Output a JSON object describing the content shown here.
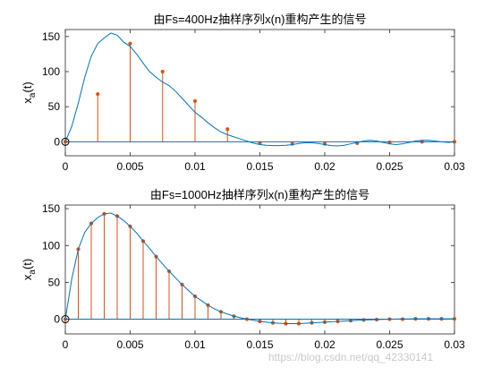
{
  "chart_data": [
    {
      "type": "stem+line",
      "title": "由Fs=400Hz抽样序列x(n)重构产生的信号",
      "xlabel": "",
      "ylabel_main": "x",
      "ylabel_sub": "a",
      "ylabel_suffix": "(t)",
      "xlim": [
        0,
        0.03
      ],
      "ylim": [
        -20,
        160
      ],
      "xticks": [
        0,
        0.005,
        0.01,
        0.015,
        0.02,
        0.025,
        0.03
      ],
      "xtick_labels": [
        "0",
        "0.005",
        "0.01",
        "0.015",
        "0.02",
        "0.025",
        "0.03"
      ],
      "yticks": [
        0,
        50,
        100,
        150
      ],
      "ytick_labels": [
        "0",
        "50",
        "100",
        "150"
      ],
      "grid": false,
      "samples": {
        "x": [
          0,
          0.0025,
          0.005,
          0.0075,
          0.01,
          0.0125,
          0.015,
          0.0175,
          0.02,
          0.0225,
          0.025,
          0.0275,
          0.03
        ],
        "y": [
          0,
          68,
          140,
          100,
          58,
          18,
          -2,
          -3,
          -3,
          -2,
          -1,
          0,
          0
        ]
      },
      "curve": {
        "x": [
          0,
          0.0005,
          0.001,
          0.0015,
          0.002,
          0.0025,
          0.003,
          0.0035,
          0.004,
          0.0045,
          0.005,
          0.0055,
          0.006,
          0.0065,
          0.007,
          0.0075,
          0.008,
          0.0085,
          0.009,
          0.0095,
          0.01,
          0.0105,
          0.011,
          0.0115,
          0.012,
          0.0125,
          0.013,
          0.0135,
          0.014,
          0.0145,
          0.015,
          0.0155,
          0.016,
          0.0165,
          0.017,
          0.0175,
          0.018,
          0.0185,
          0.019,
          0.0195,
          0.02,
          0.0205,
          0.021,
          0.0215,
          0.022,
          0.0225,
          0.023,
          0.0235,
          0.024,
          0.0245,
          0.025,
          0.0255,
          0.026,
          0.0265,
          0.027,
          0.0275,
          0.028,
          0.0285,
          0.029,
          0.0295,
          0.03
        ],
        "y": [
          0,
          22,
          55,
          92,
          122,
          140,
          148,
          155,
          152,
          142,
          136,
          125,
          112,
          100,
          92,
          85,
          80,
          72,
          62,
          52,
          42,
          35,
          27,
          20,
          14,
          10,
          7,
          4,
          1,
          -2,
          -4,
          -5,
          -5.5,
          -5.5,
          -5,
          -4,
          -2.5,
          -1.5,
          -1.5,
          -2.5,
          -4,
          -5.5,
          -6,
          -5,
          -3,
          -1,
          1,
          2,
          1,
          -1,
          -3,
          -4,
          -3,
          -1,
          1,
          2,
          2,
          1,
          0,
          -1,
          0
        ]
      }
    },
    {
      "type": "stem+line",
      "title": "由Fs=1000Hz抽样序列x(n)重构产生的信号",
      "xlabel": "",
      "ylabel_main": "x",
      "ylabel_sub": "a",
      "ylabel_suffix": "(t)",
      "xlim": [
        0,
        0.03
      ],
      "ylim": [
        -20,
        155
      ],
      "xticks": [
        0,
        0.005,
        0.01,
        0.015,
        0.02,
        0.025,
        0.03
      ],
      "xtick_labels": [
        "0",
        "0.005",
        "0.01",
        "0.015",
        "0.02",
        "0.025",
        "0.03"
      ],
      "yticks": [
        0,
        50,
        100,
        150
      ],
      "ytick_labels": [
        "0",
        "50",
        "100",
        "150"
      ],
      "grid": false,
      "samples": {
        "x": [
          0,
          0.001,
          0.002,
          0.003,
          0.004,
          0.005,
          0.006,
          0.007,
          0.008,
          0.009,
          0.01,
          0.011,
          0.012,
          0.013,
          0.014,
          0.015,
          0.016,
          0.017,
          0.018,
          0.019,
          0.02,
          0.021,
          0.022,
          0.023,
          0.024,
          0.025,
          0.026,
          0.027,
          0.028,
          0.029,
          0.03
        ],
        "y": [
          0,
          95,
          130,
          143,
          140,
          126,
          106,
          85,
          65,
          47,
          31,
          19,
          10,
          4,
          0,
          -3,
          -5,
          -6,
          -6,
          -5,
          -4,
          -3,
          -2,
          -1,
          -0.5,
          0,
          0,
          0.5,
          0.5,
          0.5,
          0.5
        ]
      },
      "curve": {
        "x": [
          0,
          0.0005,
          0.001,
          0.0015,
          0.002,
          0.0025,
          0.003,
          0.0035,
          0.004,
          0.0045,
          0.005,
          0.0055,
          0.006,
          0.0065,
          0.007,
          0.0075,
          0.008,
          0.0085,
          0.009,
          0.0095,
          0.01,
          0.0105,
          0.011,
          0.0115,
          0.012,
          0.0125,
          0.013,
          0.0135,
          0.014,
          0.0145,
          0.015,
          0.0155,
          0.016,
          0.0165,
          0.017,
          0.0175,
          0.018,
          0.0185,
          0.019,
          0.0195,
          0.02,
          0.0205,
          0.021,
          0.0215,
          0.022,
          0.0225,
          0.023,
          0.0235,
          0.024,
          0.0245,
          0.025,
          0.0255,
          0.026,
          0.0265,
          0.027,
          0.0275,
          0.028,
          0.0285,
          0.029,
          0.0295,
          0.03
        ],
        "y": [
          0,
          55,
          95,
          118,
          130,
          138,
          143,
          144,
          140,
          134,
          126,
          117,
          106,
          96,
          85,
          75,
          65,
          56,
          47,
          39,
          31,
          25,
          19,
          14,
          10,
          7,
          4,
          2,
          0,
          -1.5,
          -3,
          -4,
          -5,
          -5.5,
          -6,
          -6,
          -6,
          -5.5,
          -5,
          -4.5,
          -4,
          -3.5,
          -3,
          -2.5,
          -2,
          -1.5,
          -1,
          -0.8,
          -0.5,
          -0.2,
          0,
          0.2,
          0.3,
          0.4,
          0.5,
          0.5,
          0.5,
          0.5,
          0.5,
          0.5,
          0.5
        ]
      }
    }
  ],
  "colors": {
    "stem": "#d95319",
    "curve": "#0072bd",
    "baseline": "#0072bd",
    "axis": "#262626"
  },
  "watermark": "https://blog.csdn.net/qq_42330141"
}
